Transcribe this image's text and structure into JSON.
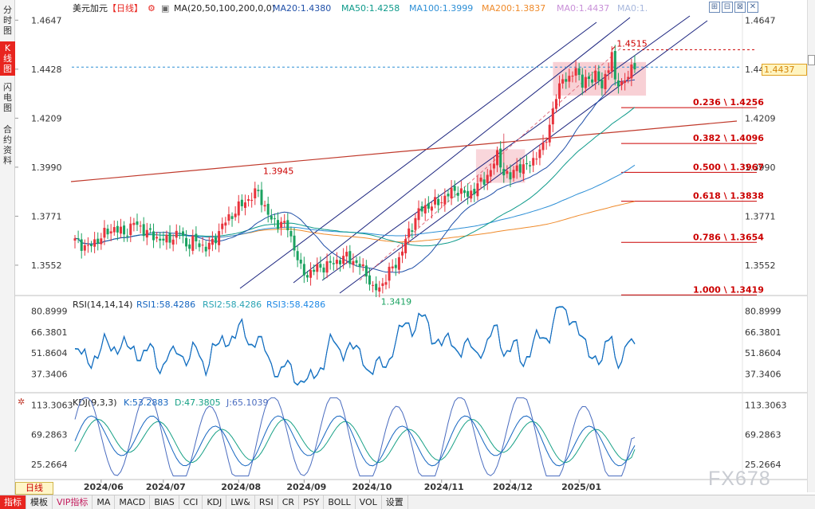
{
  "left_tabs": [
    {
      "label": "分时图",
      "active": false
    },
    {
      "label": "K线图",
      "active": true
    },
    {
      "label": "闪电图",
      "active": false
    },
    {
      "label": "合约资料",
      "active": false
    }
  ],
  "window_buttons": [
    "⊞",
    "⊟",
    "⊠",
    "✕"
  ],
  "title": {
    "name": "美元加元",
    "period": "【日线】",
    "gear": "⚙",
    "ma_icon": "▣",
    "ma_label": "MA(20,50,100,200,0,0)",
    "ma20": "MA20:1.4380",
    "ma50": "MA50:1.4258",
    "ma100": "MA100:1.3999",
    "ma200": "MA200:1.3837",
    "ma0": "MA0:1.4437",
    "ma0b": "MA0:1."
  },
  "price_tag": "1.4437",
  "rsi": {
    "label": "RSI(14,14,14)",
    "rsi1": "RSI1:58.4286",
    "rsi2": "RSI2:58.4286",
    "rsi3": "RSI3:58.4286"
  },
  "kdj": {
    "icon": "✲",
    "label": "KDJ(9,3,3)",
    "k": "K:53.2883",
    "d": "D:47.3805",
    "j": "J:65.1039"
  },
  "day_tag": "日线",
  "watermark": "FX678",
  "bottom_tabs": [
    {
      "label": "指标",
      "style": "active"
    },
    {
      "label": "模板",
      "style": ""
    },
    {
      "label": "VIP指标",
      "style": "vip"
    },
    {
      "label": "MA",
      "style": ""
    },
    {
      "label": "MACD",
      "style": ""
    },
    {
      "label": "BIAS",
      "style": ""
    },
    {
      "label": "CCI",
      "style": ""
    },
    {
      "label": "KDJ",
      "style": ""
    },
    {
      "label": "LW&",
      "style": ""
    },
    {
      "label": "RSI",
      "style": ""
    },
    {
      "label": "CR",
      "style": ""
    },
    {
      "label": "PSY",
      "style": ""
    },
    {
      "label": "BOLL",
      "style": ""
    },
    {
      "label": "VOL",
      "style": ""
    },
    {
      "label": "设置",
      "style": ""
    }
  ],
  "colors": {
    "up": "#e8333c",
    "down": "#1aa260",
    "ma20": "#1f4fa8",
    "ma50": "#0d9a8a",
    "ma100": "#2d8fd6",
    "ma200": "#ef8a2a",
    "rsi1": "#1565c0",
    "rsi2": "#2aa4b4",
    "rsi3": "#1e88e5",
    "k": "#1565c0",
    "d": "#16a085",
    "j": "#4a6cbf",
    "fib": "#cc0000",
    "trendline": "#c0392b",
    "channel": "#1a237e"
  },
  "chart_data": {
    "type": "candlestick",
    "title": "美元加元 日线",
    "price_axis": {
      "ylim": [
        1.342,
        1.473
      ],
      "ticks": [
        "1.4647",
        "1.4428",
        "1.4209",
        "1.3990",
        "1.3771",
        "1.3552"
      ],
      "tick_values": [
        1.4647,
        1.4428,
        1.4209,
        1.399,
        1.3771,
        1.3552
      ]
    },
    "time_axis": [
      "2024/06",
      "2024/07",
      "2024/08",
      "2024/09",
      "2024/10",
      "2024/11",
      "2024/12",
      "2025/01"
    ],
    "close_anchors": [
      [
        0,
        1.366
      ],
      [
        4,
        1.363
      ],
      [
        8,
        1.368
      ],
      [
        12,
        1.372
      ],
      [
        15,
        1.369
      ],
      [
        18,
        1.374
      ],
      [
        21,
        1.371
      ],
      [
        24,
        1.368
      ],
      [
        28,
        1.366
      ],
      [
        32,
        1.37
      ],
      [
        34,
        1.364
      ],
      [
        36,
        1.366
      ],
      [
        40,
        1.363
      ],
      [
        42,
        1.365
      ],
      [
        45,
        1.373
      ],
      [
        50,
        1.381
      ],
      [
        54,
        1.386
      ],
      [
        56,
        1.388
      ],
      [
        58,
        1.381
      ],
      [
        60,
        1.375
      ],
      [
        63,
        1.374
      ],
      [
        65,
        1.372
      ],
      [
        67,
        1.363
      ],
      [
        69,
        1.353
      ],
      [
        71,
        1.351
      ],
      [
        74,
        1.354
      ],
      [
        77,
        1.355
      ],
      [
        80,
        1.357
      ],
      [
        83,
        1.359
      ],
      [
        86,
        1.356
      ],
      [
        89,
        1.352
      ],
      [
        91,
        1.344
      ],
      [
        93,
        1.345
      ],
      [
        96,
        1.352
      ],
      [
        99,
        1.358
      ],
      [
        102,
        1.37
      ],
      [
        105,
        1.379
      ],
      [
        108,
        1.382
      ],
      [
        111,
        1.383
      ],
      [
        114,
        1.387
      ],
      [
        117,
        1.389
      ],
      [
        120,
        1.386
      ],
      [
        123,
        1.391
      ],
      [
        125,
        1.393
      ],
      [
        127,
        1.398
      ],
      [
        129,
        1.404
      ],
      [
        131,
        1.397
      ],
      [
        133,
        1.394
      ],
      [
        135,
        1.4
      ],
      [
        137,
        1.398
      ],
      [
        139,
        1.401
      ],
      [
        141,
        1.404
      ],
      [
        143,
        1.408
      ],
      [
        145,
        1.418
      ],
      [
        147,
        1.43
      ],
      [
        149,
        1.44
      ],
      [
        151,
        1.437
      ],
      [
        153,
        1.444
      ],
      [
        155,
        1.436
      ],
      [
        157,
        1.438
      ],
      [
        159,
        1.441
      ],
      [
        161,
        1.434
      ],
      [
        163,
        1.445
      ],
      [
        164,
        1.45
      ],
      [
        165,
        1.436
      ],
      [
        167,
        1.437
      ],
      [
        169,
        1.44
      ],
      [
        171,
        1.444
      ]
    ],
    "high_label": {
      "bar": 164,
      "value": "1.4515"
    },
    "low_label": {
      "bar": 92,
      "value": "1.3419"
    },
    "swing_label": {
      "bar": 56,
      "value": "1.3945"
    },
    "ma_values": {
      "ma20": 1.438,
      "ma50": 1.4258,
      "ma100": 1.3999,
      "ma200": 1.3837
    },
    "fibonacci": [
      {
        "label": "0.236 \\ 1.4256",
        "value": 1.4256
      },
      {
        "label": "0.382 \\ 1.4096",
        "value": 1.4096
      },
      {
        "label": "0.500 \\ 1.3967",
        "value": 1.3967
      },
      {
        "label": "0.618 \\ 1.3838",
        "value": 1.3838
      },
      {
        "label": "0.786 \\ 1.3654",
        "value": 1.3654
      },
      {
        "label": "1.000 \\ 1.3419",
        "value": 1.3419
      }
    ],
    "rsi_axis": {
      "ylim": [
        25,
        90
      ],
      "ticks": [
        "80.8999",
        "66.3801",
        "51.8604",
        "37.3406"
      ],
      "tick_values": [
        80.8999,
        66.3801,
        51.8604,
        37.3406
      ]
    },
    "kdj_axis": {
      "ylim": [
        5,
        128
      ],
      "ticks": [
        "113.3063",
        "69.2863",
        "25.2664"
      ],
      "tick_values": [
        113.3063,
        69.2863,
        25.2664
      ]
    },
    "rsi_last": 58.4286,
    "kdj_last": {
      "k": 53.2883,
      "d": 47.3805,
      "j": 65.1039
    }
  }
}
